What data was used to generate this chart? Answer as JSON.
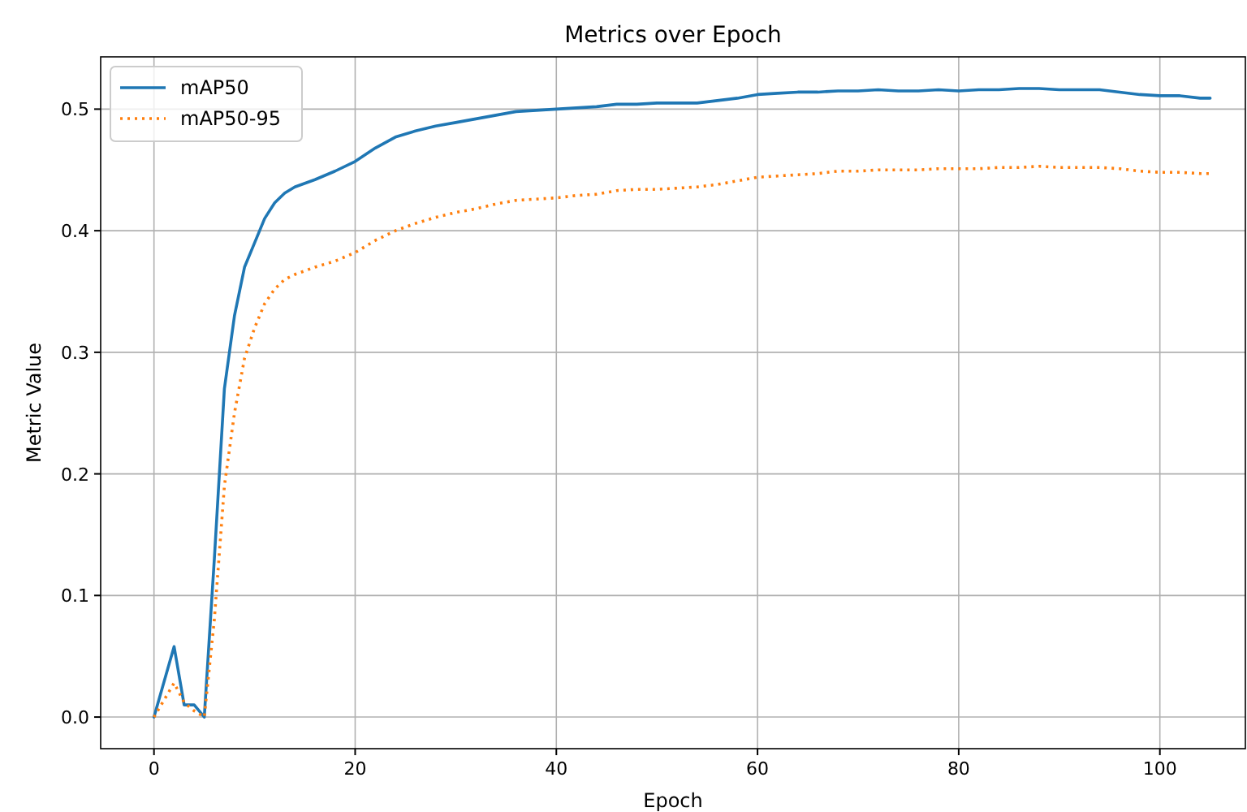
{
  "chart_data": {
    "type": "line",
    "title": "Metrics over Epoch",
    "xlabel": "Epoch",
    "ylabel": "Metric Value",
    "xlim": [
      -5.3,
      108.5
    ],
    "xticks": [
      0,
      20,
      40,
      60,
      80,
      100
    ],
    "ylim": [
      -0.026,
      0.543
    ],
    "yticks": [
      {
        "value": 0,
        "label": "0.0"
      },
      0.1,
      0.2,
      0.3,
      0.4,
      0.5
    ],
    "grid": true,
    "legend": "top left",
    "series": [
      {
        "name": "mAP50",
        "color": "#1f77b4",
        "line_style": "solid",
        "x": [
          0,
          2,
          3,
          4,
          5,
          6,
          7,
          8,
          9,
          10,
          11,
          12,
          13,
          14,
          16,
          18,
          20,
          22,
          24,
          26,
          28,
          30,
          32,
          34,
          36,
          38,
          40,
          42,
          44,
          46,
          48,
          50,
          52,
          54,
          56,
          58,
          60,
          62,
          64,
          66,
          68,
          70,
          72,
          74,
          76,
          78,
          80,
          82,
          84,
          86,
          88,
          90,
          92,
          94,
          96,
          98,
          100,
          102,
          104,
          105
        ],
        "values": [
          0,
          0.058,
          0.01,
          0.01,
          0,
          0.13,
          0.27,
          0.33,
          0.37,
          0.39,
          0.41,
          0.423,
          0.431,
          0.436,
          0.442,
          0.449,
          0.457,
          0.468,
          0.477,
          0.482,
          0.486,
          0.489,
          0.492,
          0.495,
          0.498,
          0.499,
          0.5,
          0.501,
          0.502,
          0.504,
          0.504,
          0.505,
          0.505,
          0.505,
          0.507,
          0.509,
          0.512,
          0.513,
          0.514,
          0.514,
          0.515,
          0.515,
          0.516,
          0.515,
          0.515,
          0.516,
          0.515,
          0.516,
          0.516,
          0.517,
          0.517,
          0.516,
          0.516,
          0.516,
          0.514,
          0.512,
          0.511,
          0.511,
          0.509,
          0.509
        ]
      },
      {
        "name": "mAP50-95",
        "color": "#ff7f0e",
        "line_style": "dotted",
        "x": [
          0,
          2,
          3,
          4,
          5,
          6,
          7,
          8,
          9,
          10,
          11,
          12,
          13,
          14,
          16,
          18,
          20,
          22,
          24,
          26,
          28,
          30,
          32,
          34,
          36,
          38,
          40,
          42,
          44,
          46,
          48,
          50,
          52,
          54,
          56,
          58,
          60,
          62,
          64,
          66,
          68,
          70,
          72,
          74,
          76,
          78,
          80,
          82,
          84,
          86,
          88,
          90,
          92,
          94,
          96,
          98,
          100,
          102,
          104,
          105
        ],
        "values": [
          0,
          0.028,
          0.012,
          0.005,
          0,
          0.08,
          0.19,
          0.25,
          0.295,
          0.32,
          0.34,
          0.352,
          0.36,
          0.364,
          0.37,
          0.375,
          0.382,
          0.392,
          0.4,
          0.406,
          0.411,
          0.415,
          0.418,
          0.422,
          0.425,
          0.426,
          0.427,
          0.429,
          0.43,
          0.433,
          0.434,
          0.434,
          0.435,
          0.436,
          0.438,
          0.441,
          0.444,
          0.445,
          0.446,
          0.447,
          0.449,
          0.449,
          0.45,
          0.45,
          0.45,
          0.451,
          0.451,
          0.451,
          0.452,
          0.452,
          0.453,
          0.452,
          0.452,
          0.452,
          0.451,
          0.449,
          0.448,
          0.448,
          0.447,
          0.447
        ]
      }
    ]
  }
}
